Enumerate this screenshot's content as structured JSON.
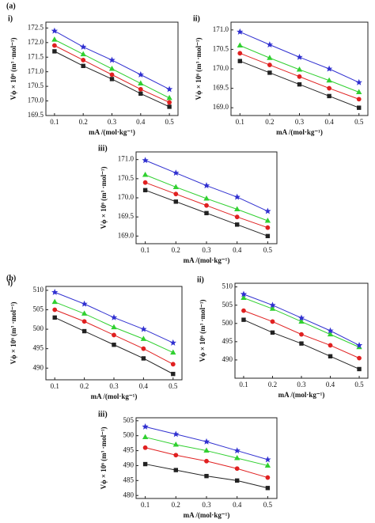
{
  "panel_labels": [
    "(a)",
    "(b)"
  ],
  "chart_data": [
    {
      "type": "line",
      "title": "i)",
      "x_label": "mA /(mol·kg⁻¹)",
      "y_label": "Vϕ × 10⁶ (m³ ·mol⁻¹)",
      "x": [
        0.1,
        0.2,
        0.3,
        0.4,
        0.5
      ],
      "xlim": [
        0.07,
        0.53
      ],
      "xticks": [
        0.1,
        0.2,
        0.3,
        0.4,
        0.5
      ],
      "ylim": [
        169.5,
        172.7
      ],
      "yticks": [
        169.5,
        {
          "value": 170,
          "label": "170.0"
        },
        170.5,
        {
          "value": 171,
          "label": "171.0"
        },
        171.5,
        {
          "value": 172,
          "label": "172.0"
        },
        172.5
      ],
      "series": [
        {
          "color": "#222222",
          "marker": "square",
          "values": [
            171.7,
            171.2,
            170.75,
            170.25,
            169.8
          ]
        },
        {
          "color": "#e02020",
          "marker": "circle",
          "values": [
            171.9,
            171.4,
            170.9,
            170.4,
            169.95
          ]
        },
        {
          "color": "#30d030",
          "marker": "triangle",
          "values": [
            172.1,
            171.6,
            171.1,
            170.6,
            170.1
          ]
        },
        {
          "color": "#3030d0",
          "marker": "star",
          "values": [
            172.4,
            171.85,
            171.4,
            170.9,
            170.4
          ]
        }
      ]
    },
    {
      "type": "line",
      "title": "ii)",
      "x_label": "mA /(mol·kg⁻¹)",
      "y_label": "Vϕ × 10⁶ (m³ ·mol⁻¹)",
      "x": [
        0.1,
        0.2,
        0.3,
        0.4,
        0.5
      ],
      "xlim": [
        0.07,
        0.53
      ],
      "xticks": [
        0.1,
        0.2,
        0.3,
        0.4,
        0.5
      ],
      "ylim": [
        168.8,
        171.2
      ],
      "yticks": [
        {
          "value": 169,
          "label": "169.0"
        },
        169.5,
        {
          "value": 170,
          "label": "170.0"
        },
        170.5,
        {
          "value": 171,
          "label": "171.0"
        }
      ],
      "series": [
        {
          "color": "#222222",
          "marker": "square",
          "values": [
            170.2,
            169.9,
            169.6,
            169.3,
            169.0
          ]
        },
        {
          "color": "#e02020",
          "marker": "circle",
          "values": [
            170.4,
            170.1,
            169.8,
            169.5,
            169.22
          ]
        },
        {
          "color": "#30d030",
          "marker": "triangle",
          "values": [
            170.6,
            170.28,
            169.98,
            169.7,
            169.4
          ]
        },
        {
          "color": "#3030d0",
          "marker": "star",
          "values": [
            170.95,
            170.62,
            170.3,
            170.0,
            169.65
          ]
        }
      ]
    },
    {
      "type": "line",
      "title": "iii)",
      "x_label": "mA /(mol·kg⁻¹)",
      "y_label": "Vϕ × 10⁶ (m³ ·mol⁻¹)",
      "x": [
        0.1,
        0.2,
        0.3,
        0.4,
        0.5
      ],
      "xlim": [
        0.07,
        0.53
      ],
      "xticks": [
        0.1,
        0.2,
        0.3,
        0.4,
        0.5
      ],
      "ylim": [
        168.8,
        171.2
      ],
      "yticks": [
        {
          "value": 169,
          "label": "169.0"
        },
        169.5,
        {
          "value": 170,
          "label": "170.0"
        },
        170.5,
        {
          "value": 171,
          "label": "171.0"
        }
      ],
      "series": [
        {
          "color": "#222222",
          "marker": "square",
          "values": [
            170.2,
            169.9,
            169.6,
            169.3,
            169.0
          ]
        },
        {
          "color": "#e02020",
          "marker": "circle",
          "values": [
            170.4,
            170.1,
            169.8,
            169.5,
            169.22
          ]
        },
        {
          "color": "#30d030",
          "marker": "triangle",
          "values": [
            170.6,
            170.28,
            169.98,
            169.7,
            169.4
          ]
        },
        {
          "color": "#3030d0",
          "marker": "star",
          "values": [
            170.98,
            170.65,
            170.32,
            170.02,
            169.65
          ]
        }
      ]
    },
    {
      "type": "line",
      "title": "i)",
      "x_label": "mA /(mol·kg⁻¹)",
      "y_label": "Vϕ × 10⁶ (m³ ·mol⁻¹)",
      "x": [
        0.1,
        0.2,
        0.3,
        0.4,
        0.5
      ],
      "xlim": [
        0.07,
        0.53
      ],
      "xticks": [
        0.1,
        0.2,
        0.3,
        0.4,
        0.5
      ],
      "ylim": [
        487,
        511
      ],
      "yticks": [
        490,
        495,
        500,
        505,
        510
      ],
      "series": [
        {
          "color": "#222222",
          "marker": "square",
          "values": [
            503,
            499.5,
            496,
            492.5,
            488.5
          ]
        },
        {
          "color": "#e02020",
          "marker": "circle",
          "values": [
            505,
            502,
            498.5,
            495,
            491
          ]
        },
        {
          "color": "#30d030",
          "marker": "triangle",
          "values": [
            507,
            504,
            500.5,
            497.5,
            494
          ]
        },
        {
          "color": "#3030d0",
          "marker": "star",
          "values": [
            509.5,
            506.5,
            503,
            500,
            496.5
          ]
        }
      ]
    },
    {
      "type": "line",
      "title": "ii)",
      "x_label": "mA /(mol·kg⁻¹)",
      "y_label": "Vϕ × 10⁶ (m³ ·mol⁻¹)",
      "x": [
        0.1,
        0.2,
        0.3,
        0.4,
        0.5
      ],
      "xlim": [
        0.07,
        0.53
      ],
      "xticks": [
        0.1,
        0.2,
        0.3,
        0.4,
        0.5
      ],
      "ylim": [
        485,
        511
      ],
      "yticks": [
        490,
        495,
        500,
        505,
        510
      ],
      "series": [
        {
          "color": "#222222",
          "marker": "square",
          "values": [
            501,
            497.5,
            494.5,
            491,
            487.5
          ]
        },
        {
          "color": "#e02020",
          "marker": "circle",
          "values": [
            503.5,
            500.5,
            497,
            494,
            490.5
          ]
        },
        {
          "color": "#30d030",
          "marker": "triangle",
          "values": [
            507,
            504,
            500.5,
            497,
            493.5
          ]
        },
        {
          "color": "#3030d0",
          "marker": "star",
          "values": [
            508,
            505,
            501.5,
            498,
            494
          ]
        }
      ]
    },
    {
      "type": "line",
      "title": "iii)",
      "x_label": "mA /(mol·kg⁻¹)",
      "y_label": "Vϕ × 10⁶ (m³ ·mol⁻¹)",
      "x": [
        0.1,
        0.2,
        0.3,
        0.4,
        0.5
      ],
      "xlim": [
        0.07,
        0.53
      ],
      "xticks": [
        0.1,
        0.2,
        0.3,
        0.4,
        0.5
      ],
      "ylim": [
        479,
        506
      ],
      "yticks": [
        480,
        485,
        490,
        495,
        500,
        505
      ],
      "series": [
        {
          "color": "#222222",
          "marker": "square",
          "values": [
            490.5,
            488.5,
            486.5,
            485,
            482.5
          ]
        },
        {
          "color": "#e02020",
          "marker": "circle",
          "values": [
            496,
            493.5,
            491.5,
            489,
            486
          ]
        },
        {
          "color": "#30d030",
          "marker": "triangle",
          "values": [
            499.5,
            497,
            495,
            492.5,
            490
          ]
        },
        {
          "color": "#3030d0",
          "marker": "star",
          "values": [
            503,
            500.5,
            498,
            495,
            492
          ]
        }
      ]
    }
  ]
}
